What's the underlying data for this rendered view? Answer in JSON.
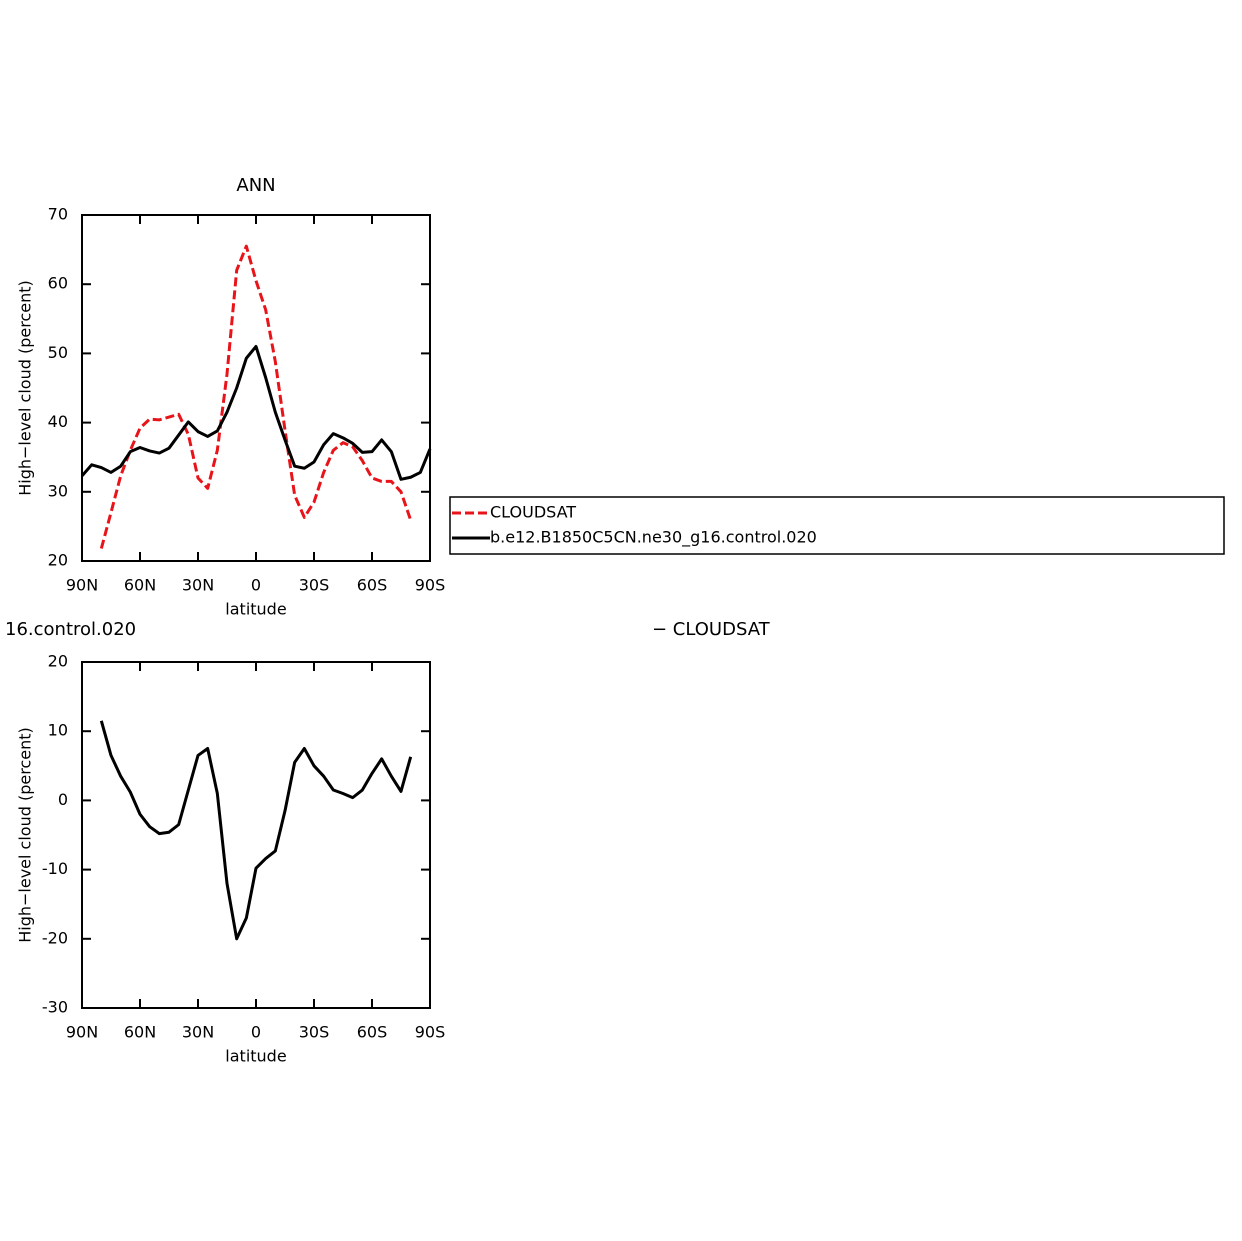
{
  "chart_data": [
    {
      "type": "line",
      "title": "ANN",
      "xlabel": "latitude",
      "ylabel": "High−level cloud (percent)",
      "x": [
        90,
        85,
        80,
        75,
        70,
        65,
        60,
        55,
        50,
        45,
        40,
        35,
        30,
        25,
        20,
        15,
        10,
        5,
        0,
        -5,
        -10,
        -15,
        -20,
        -25,
        -30,
        -35,
        -40,
        -45,
        -50,
        -55,
        -60,
        -65,
        -70,
        -75,
        -80,
        -85,
        -90
      ],
      "series": [
        {
          "name": "CLOUDSAT",
          "color": "#e8141a",
          "dash": true,
          "values": [
            null,
            null,
            21.8,
            27.0,
            32.3,
            36.0,
            39.2,
            40.5,
            40.4,
            40.8,
            41.2,
            38.3,
            32.0,
            30.5,
            36.0,
            47.0,
            62.0,
            65.5,
            60.5,
            56.3,
            48.8,
            38.9,
            29.5,
            26.3,
            28.5,
            32.8,
            36.0,
            37.1,
            36.5,
            34.5,
            32.0,
            31.5,
            31.5,
            30.0,
            25.9,
            null,
            null
          ]
        },
        {
          "name": "b.e12.B1850C5CN.ne30_g16.control.020",
          "color": "#000000",
          "dash": false,
          "values": [
            32.3,
            33.9,
            33.5,
            32.8,
            33.7,
            35.8,
            36.4,
            35.9,
            35.6,
            36.3,
            38.2,
            40.1,
            38.7,
            38.0,
            38.8,
            41.5,
            45.0,
            49.3,
            51.0,
            46.5,
            41.5,
            37.5,
            33.7,
            33.4,
            34.3,
            36.8,
            38.4,
            37.8,
            37.0,
            35.7,
            35.8,
            37.5,
            35.8,
            31.8,
            32.1,
            32.8,
            36.2
          ]
        }
      ],
      "xlim": [
        90,
        -90
      ],
      "xticks": [
        {
          "value": 90,
          "label": "90N"
        },
        {
          "value": 60,
          "label": "60N"
        },
        {
          "value": 30,
          "label": "30N"
        },
        0,
        {
          "value": -30,
          "label": "30S"
        },
        {
          "value": -60,
          "label": "60S"
        },
        {
          "value": -90,
          "label": "90S"
        }
      ],
      "ylim": [
        20,
        70
      ],
      "yticks": [
        20,
        30,
        40,
        50,
        60,
        70
      ],
      "legend": "right"
    },
    {
      "type": "line",
      "title": "16.control.020",
      "subtitle": "− CLOUDSAT",
      "xlabel": "latitude",
      "ylabel": "High−level cloud (percent)",
      "x": [
        80,
        75,
        70,
        65,
        60,
        55,
        50,
        45,
        40,
        35,
        30,
        25,
        20,
        15,
        10,
        5,
        0,
        -5,
        -10,
        -15,
        -20,
        -25,
        -30,
        -35,
        -40,
        -45,
        -50,
        -55,
        -60,
        -65,
        -70,
        -75,
        -80
      ],
      "series": [
        {
          "color": "#000000",
          "dash": false,
          "values": [
            11.5,
            6.5,
            3.5,
            1.2,
            -2.0,
            -3.8,
            -4.8,
            -4.6,
            -3.5,
            1.5,
            6.5,
            7.5,
            1.0,
            -12.0,
            -20.0,
            -17.0,
            -9.8,
            -8.4,
            -7.3,
            -1.5,
            5.5,
            7.5,
            5.0,
            3.5,
            1.5,
            1.0,
            0.4,
            1.5,
            3.9,
            6.0,
            3.5,
            1.3,
            6.3
          ]
        }
      ],
      "xlim": [
        90,
        -90
      ],
      "xticks": [
        {
          "value": 90,
          "label": "90N"
        },
        {
          "value": 60,
          "label": "60N"
        },
        {
          "value": 30,
          "label": "30N"
        },
        0,
        {
          "value": -30,
          "label": "30S"
        },
        {
          "value": -60,
          "label": "60S"
        },
        {
          "value": -90,
          "label": "90S"
        }
      ],
      "ylim": [
        -30,
        20
      ],
      "yticks": [
        -30,
        -20,
        -10,
        0,
        10,
        20
      ]
    }
  ]
}
